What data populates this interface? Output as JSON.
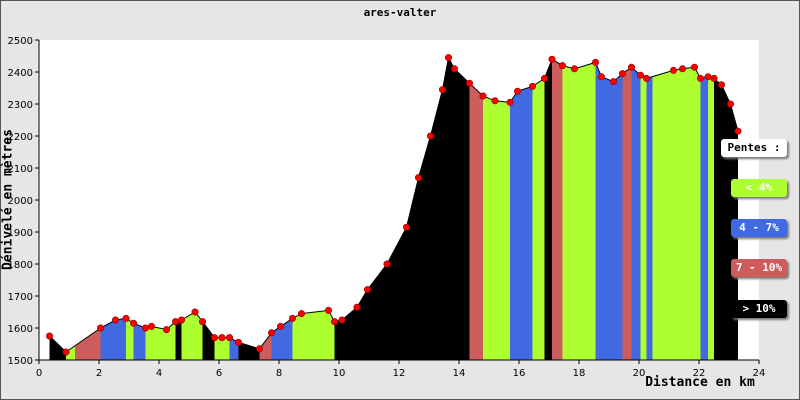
{
  "chart_data": {
    "type": "area",
    "title": "ares-valter",
    "xlabel": "Distance en km",
    "ylabel": "Dénivelé en mètres",
    "xlim": [
      0,
      24
    ],
    "ylim": [
      1500,
      2500
    ],
    "x_ticks": [
      "0",
      "2",
      "4",
      "6",
      "8",
      "10",
      "12",
      "14",
      "16",
      "18",
      "20",
      "22",
      "24"
    ],
    "y_ticks": [
      "1500",
      "1600",
      "1700",
      "1800",
      "1900",
      "2000",
      "2100",
      "2200",
      "2300",
      "2400",
      "2500"
    ],
    "grid": "off",
    "profile": {
      "x": [
        0.35,
        0.9,
        2.05,
        2.55,
        2.9,
        3.15,
        3.55,
        3.75,
        4.25,
        4.55,
        4.75,
        5.2,
        5.45,
        5.85,
        6.1,
        6.35,
        6.65,
        7.35,
        7.75,
        8.05,
        8.45,
        8.75,
        9.65,
        9.85,
        10.1,
        10.6,
        10.95,
        11.6,
        12.25,
        12.65,
        13.05,
        13.45,
        13.65,
        13.85,
        14.35,
        14.8,
        15.2,
        15.7,
        15.95,
        16.45,
        16.85,
        17.1,
        17.45,
        17.85,
        18.55,
        18.75,
        19.15,
        19.45,
        19.75,
        20.05,
        20.25,
        21.15,
        21.45,
        21.85,
        22.05,
        22.3,
        22.5,
        22.75,
        23.05,
        23.3
      ],
      "y": [
        1575,
        1525,
        1600,
        1625,
        1630,
        1615,
        1600,
        1605,
        1595,
        1620,
        1625,
        1650,
        1620,
        1570,
        1570,
        1570,
        1555,
        1535,
        1585,
        1605,
        1630,
        1645,
        1655,
        1620,
        1625,
        1665,
        1720,
        1800,
        1915,
        2070,
        2200,
        2345,
        2445,
        2410,
        2365,
        2325,
        2310,
        2305,
        2340,
        2355,
        2380,
        2440,
        2420,
        2410,
        2430,
        2385,
        2370,
        2395,
        2415,
        2390,
        2380,
        2405,
        2410,
        2415,
        2380,
        2385,
        2380,
        2360,
        2300,
        2215
      ]
    },
    "slope_segments": [
      {
        "x0": 0.35,
        "x1": 0.9,
        "class": "steep"
      },
      {
        "x0": 0.9,
        "x1": 1.2,
        "class": "gentle"
      },
      {
        "x0": 1.2,
        "x1": 2.05,
        "class": "hard"
      },
      {
        "x0": 2.05,
        "x1": 2.9,
        "class": "medium"
      },
      {
        "x0": 2.9,
        "x1": 3.15,
        "class": "gentle"
      },
      {
        "x0": 3.15,
        "x1": 3.55,
        "class": "medium"
      },
      {
        "x0": 3.55,
        "x1": 4.55,
        "class": "gentle"
      },
      {
        "x0": 4.55,
        "x1": 4.75,
        "class": "steep"
      },
      {
        "x0": 4.75,
        "x1": 5.45,
        "class": "gentle"
      },
      {
        "x0": 5.45,
        "x1": 5.85,
        "class": "steep"
      },
      {
        "x0": 5.85,
        "x1": 6.35,
        "class": "gentle"
      },
      {
        "x0": 6.35,
        "x1": 6.65,
        "class": "medium"
      },
      {
        "x0": 6.65,
        "x1": 7.35,
        "class": "steep"
      },
      {
        "x0": 7.35,
        "x1": 7.75,
        "class": "hard"
      },
      {
        "x0": 7.75,
        "x1": 8.05,
        "class": "medium"
      },
      {
        "x0": 8.05,
        "x1": 8.45,
        "class": "medium"
      },
      {
        "x0": 8.45,
        "x1": 9.65,
        "class": "gentle"
      },
      {
        "x0": 9.65,
        "x1": 9.85,
        "class": "gentle"
      },
      {
        "x0": 9.85,
        "x1": 10.05,
        "class": "steep"
      },
      {
        "x0": 10.05,
        "x1": 14.35,
        "class": "steep"
      },
      {
        "x0": 14.35,
        "x1": 14.8,
        "class": "hard"
      },
      {
        "x0": 14.8,
        "x1": 15.7,
        "class": "gentle"
      },
      {
        "x0": 15.7,
        "x1": 16.45,
        "class": "medium"
      },
      {
        "x0": 16.45,
        "x1": 16.85,
        "class": "gentle"
      },
      {
        "x0": 16.85,
        "x1": 17.1,
        "class": "steep"
      },
      {
        "x0": 17.1,
        "x1": 17.45,
        "class": "hard"
      },
      {
        "x0": 17.45,
        "x1": 18.55,
        "class": "gentle"
      },
      {
        "x0": 18.55,
        "x1": 19.45,
        "class": "medium"
      },
      {
        "x0": 19.45,
        "x1": 19.75,
        "class": "hard"
      },
      {
        "x0": 19.75,
        "x1": 20.05,
        "class": "medium"
      },
      {
        "x0": 20.05,
        "x1": 20.25,
        "class": "gentle"
      },
      {
        "x0": 20.25,
        "x1": 20.45,
        "class": "medium"
      },
      {
        "x0": 20.45,
        "x1": 22.05,
        "class": "gentle"
      },
      {
        "x0": 22.05,
        "x1": 22.3,
        "class": "medium"
      },
      {
        "x0": 22.3,
        "x1": 22.5,
        "class": "gentle"
      },
      {
        "x0": 22.5,
        "x1": 23.3,
        "class": "steep"
      }
    ],
    "legend": {
      "title": "Pentes :",
      "placement": "right",
      "items": [
        {
          "key": "gentle",
          "label": "< 4%",
          "color": "#adff2f"
        },
        {
          "key": "medium",
          "label": "4 - 7%",
          "color": "#4169e1"
        },
        {
          "key": "hard",
          "label": "7 - 10%",
          "color": "#cd5c5c"
        },
        {
          "key": "steep",
          "label": "> 10%",
          "color": "#000000"
        }
      ]
    },
    "colors": {
      "plot_bg": "#ffffff",
      "frame_bg": "#e6e6e6",
      "marker": "#ff0000",
      "profile_line": "#000000"
    }
  }
}
